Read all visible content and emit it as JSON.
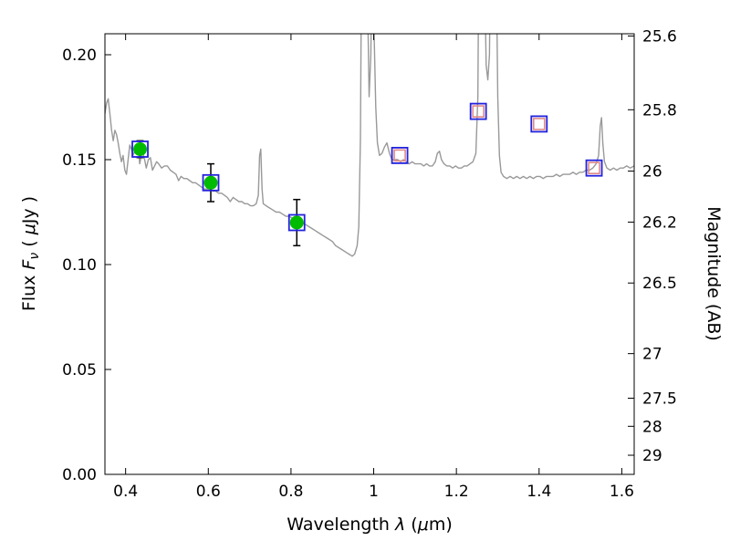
{
  "chart_data": {
    "type": "line+scatter",
    "title": "",
    "xlabel_parts": [
      "Wavelength ",
      "λ",
      " (",
      "μ",
      "m)"
    ],
    "ylabel_left_parts": [
      "Flux ",
      "F",
      "ν",
      " ( ",
      "μ",
      "Jy )"
    ],
    "ylabel_right": "Magnitude (AB)",
    "xlim": [
      0.35,
      1.63
    ],
    "ylim": [
      0.0,
      0.21
    ],
    "grid": false,
    "legend": "none",
    "ab_zeropoint_ujy": 23.9,
    "x_ticks": [
      0.4,
      0.6,
      0.8,
      1.0,
      1.2,
      1.4,
      1.6
    ],
    "x_tick_labels": [
      "0.4",
      "0.6",
      "0.8",
      "1",
      "1.2",
      "1.4",
      "1.6"
    ],
    "y_ticks_left": [
      0.0,
      0.05,
      0.1,
      0.15,
      0.2
    ],
    "y_tick_labels_left": [
      "0.00",
      "0.05",
      "0.10",
      "0.15",
      "0.20"
    ],
    "y_ticks_right_mag": [
      25.6,
      25.8,
      26.0,
      26.2,
      26.5,
      27.0,
      27.5,
      28.0,
      29.0
    ],
    "y_tick_labels_right": [
      "25.6",
      "25.8",
      "26",
      "26.2",
      "26.5",
      "27",
      "27.5",
      "28",
      "29"
    ],
    "series": [
      {
        "name": "model-spectrum",
        "kind": "line",
        "color": "#999999",
        "width": 1.4,
        "points": [
          [
            0.35,
            0.172
          ],
          [
            0.354,
            0.177
          ],
          [
            0.358,
            0.179
          ],
          [
            0.362,
            0.172
          ],
          [
            0.366,
            0.164
          ],
          [
            0.37,
            0.159
          ],
          [
            0.374,
            0.164
          ],
          [
            0.378,
            0.162
          ],
          [
            0.382,
            0.158
          ],
          [
            0.386,
            0.153
          ],
          [
            0.39,
            0.149
          ],
          [
            0.394,
            0.152
          ],
          [
            0.398,
            0.145
          ],
          [
            0.402,
            0.143
          ],
          [
            0.406,
            0.15
          ],
          [
            0.41,
            0.157
          ],
          [
            0.414,
            0.155
          ],
          [
            0.418,
            0.152
          ],
          [
            0.422,
            0.154
          ],
          [
            0.426,
            0.156
          ],
          [
            0.43,
            0.157
          ],
          [
            0.434,
            0.148
          ],
          [
            0.438,
            0.152
          ],
          [
            0.442,
            0.153
          ],
          [
            0.446,
            0.15
          ],
          [
            0.45,
            0.146
          ],
          [
            0.455,
            0.15
          ],
          [
            0.46,
            0.151
          ],
          [
            0.465,
            0.145
          ],
          [
            0.47,
            0.147
          ],
          [
            0.475,
            0.149
          ],
          [
            0.48,
            0.148
          ],
          [
            0.487,
            0.146
          ],
          [
            0.494,
            0.147
          ],
          [
            0.501,
            0.147
          ],
          [
            0.508,
            0.145
          ],
          [
            0.515,
            0.144
          ],
          [
            0.522,
            0.143
          ],
          [
            0.528,
            0.14
          ],
          [
            0.534,
            0.142
          ],
          [
            0.541,
            0.141
          ],
          [
            0.548,
            0.141
          ],
          [
            0.555,
            0.14
          ],
          [
            0.562,
            0.139
          ],
          [
            0.569,
            0.139
          ],
          [
            0.576,
            0.138
          ],
          [
            0.583,
            0.137
          ],
          [
            0.59,
            0.136
          ],
          [
            0.597,
            0.136
          ],
          [
            0.604,
            0.136
          ],
          [
            0.611,
            0.135
          ],
          [
            0.618,
            0.135
          ],
          [
            0.625,
            0.134
          ],
          [
            0.632,
            0.134
          ],
          [
            0.639,
            0.133
          ],
          [
            0.646,
            0.132
          ],
          [
            0.653,
            0.13
          ],
          [
            0.66,
            0.132
          ],
          [
            0.667,
            0.131
          ],
          [
            0.674,
            0.13
          ],
          [
            0.681,
            0.13
          ],
          [
            0.688,
            0.129
          ],
          [
            0.695,
            0.129
          ],
          [
            0.702,
            0.128
          ],
          [
            0.709,
            0.128
          ],
          [
            0.716,
            0.129
          ],
          [
            0.721,
            0.133
          ],
          [
            0.724,
            0.152
          ],
          [
            0.727,
            0.155
          ],
          [
            0.73,
            0.136
          ],
          [
            0.733,
            0.129
          ],
          [
            0.74,
            0.128
          ],
          [
            0.748,
            0.127
          ],
          [
            0.756,
            0.126
          ],
          [
            0.764,
            0.125
          ],
          [
            0.772,
            0.125
          ],
          [
            0.78,
            0.124
          ],
          [
            0.788,
            0.123
          ],
          [
            0.796,
            0.123
          ],
          [
            0.804,
            0.122
          ],
          [
            0.812,
            0.121
          ],
          [
            0.82,
            0.121
          ],
          [
            0.828,
            0.12
          ],
          [
            0.836,
            0.119
          ],
          [
            0.844,
            0.118
          ],
          [
            0.852,
            0.117
          ],
          [
            0.86,
            0.116
          ],
          [
            0.868,
            0.115
          ],
          [
            0.876,
            0.114
          ],
          [
            0.884,
            0.113
          ],
          [
            0.892,
            0.112
          ],
          [
            0.9,
            0.111
          ],
          [
            0.908,
            0.109
          ],
          [
            0.916,
            0.108
          ],
          [
            0.924,
            0.107
          ],
          [
            0.932,
            0.106
          ],
          [
            0.94,
            0.105
          ],
          [
            0.948,
            0.104
          ],
          [
            0.954,
            0.105
          ],
          [
            0.96,
            0.109
          ],
          [
            0.964,
            0.118
          ],
          [
            0.968,
            0.16
          ],
          [
            0.971,
            0.26
          ],
          [
            0.976,
            0.33
          ],
          [
            0.981,
            0.3
          ],
          [
            0.985,
            0.23
          ],
          [
            0.989,
            0.18
          ],
          [
            0.993,
            0.2
          ],
          [
            0.997,
            0.26
          ],
          [
            1.001,
            0.21
          ],
          [
            1.005,
            0.175
          ],
          [
            1.009,
            0.158
          ],
          [
            1.014,
            0.152
          ],
          [
            1.02,
            0.153
          ],
          [
            1.026,
            0.156
          ],
          [
            1.032,
            0.158
          ],
          [
            1.038,
            0.153
          ],
          [
            1.044,
            0.15
          ],
          [
            1.051,
            0.15
          ],
          [
            1.058,
            0.15
          ],
          [
            1.065,
            0.149
          ],
          [
            1.072,
            0.15
          ],
          [
            1.079,
            0.149
          ],
          [
            1.086,
            0.148
          ],
          [
            1.093,
            0.149
          ],
          [
            1.1,
            0.148
          ],
          [
            1.107,
            0.148
          ],
          [
            1.114,
            0.148
          ],
          [
            1.121,
            0.147
          ],
          [
            1.128,
            0.148
          ],
          [
            1.135,
            0.147
          ],
          [
            1.142,
            0.147
          ],
          [
            1.149,
            0.149
          ],
          [
            1.154,
            0.153
          ],
          [
            1.159,
            0.154
          ],
          [
            1.164,
            0.15
          ],
          [
            1.17,
            0.148
          ],
          [
            1.177,
            0.147
          ],
          [
            1.184,
            0.147
          ],
          [
            1.191,
            0.146
          ],
          [
            1.198,
            0.147
          ],
          [
            1.205,
            0.146
          ],
          [
            1.212,
            0.146
          ],
          [
            1.219,
            0.147
          ],
          [
            1.226,
            0.147
          ],
          [
            1.233,
            0.148
          ],
          [
            1.24,
            0.149
          ],
          [
            1.247,
            0.153
          ],
          [
            1.252,
            0.18
          ],
          [
            1.256,
            0.3
          ],
          [
            1.26,
            0.36
          ],
          [
            1.264,
            0.33
          ],
          [
            1.268,
            0.24
          ],
          [
            1.272,
            0.195
          ],
          [
            1.276,
            0.188
          ],
          [
            1.28,
            0.2
          ],
          [
            1.284,
            0.28
          ],
          [
            1.288,
            0.36
          ],
          [
            1.292,
            0.34
          ],
          [
            1.296,
            0.25
          ],
          [
            1.3,
            0.18
          ],
          [
            1.304,
            0.152
          ],
          [
            1.308,
            0.144
          ],
          [
            1.314,
            0.142
          ],
          [
            1.322,
            0.141
          ],
          [
            1.33,
            0.142
          ],
          [
            1.338,
            0.141
          ],
          [
            1.346,
            0.142
          ],
          [
            1.354,
            0.141
          ],
          [
            1.362,
            0.142
          ],
          [
            1.37,
            0.141
          ],
          [
            1.378,
            0.142
          ],
          [
            1.386,
            0.141
          ],
          [
            1.394,
            0.142
          ],
          [
            1.402,
            0.142
          ],
          [
            1.41,
            0.141
          ],
          [
            1.418,
            0.142
          ],
          [
            1.426,
            0.142
          ],
          [
            1.434,
            0.142
          ],
          [
            1.442,
            0.143
          ],
          [
            1.45,
            0.142
          ],
          [
            1.458,
            0.143
          ],
          [
            1.466,
            0.143
          ],
          [
            1.474,
            0.143
          ],
          [
            1.482,
            0.144
          ],
          [
            1.49,
            0.143
          ],
          [
            1.498,
            0.144
          ],
          [
            1.506,
            0.144
          ],
          [
            1.514,
            0.145
          ],
          [
            1.522,
            0.145
          ],
          [
            1.53,
            0.146
          ],
          [
            1.538,
            0.148
          ],
          [
            1.544,
            0.152
          ],
          [
            1.548,
            0.166
          ],
          [
            1.551,
            0.17
          ],
          [
            1.554,
            0.158
          ],
          [
            1.558,
            0.149
          ],
          [
            1.564,
            0.146
          ],
          [
            1.572,
            0.145
          ],
          [
            1.58,
            0.146
          ],
          [
            1.588,
            0.145
          ],
          [
            1.596,
            0.146
          ],
          [
            1.604,
            0.146
          ],
          [
            1.612,
            0.147
          ],
          [
            1.62,
            0.146
          ],
          [
            1.63,
            0.147
          ]
        ]
      },
      {
        "name": "observed-photometry",
        "kind": "scatter",
        "marker": "circle",
        "color": "#00bb00",
        "size": 15,
        "error_color": "#000000",
        "points": [
          [
            0.435,
            0.155
          ],
          [
            0.606,
            0.139
          ],
          [
            0.814,
            0.12
          ]
        ],
        "yerr": [
          0.004,
          0.009,
          0.011
        ]
      },
      {
        "name": "synthetic-photometry-blue",
        "kind": "scatter",
        "marker": "square-open",
        "color": "#2222dd",
        "size": 17,
        "stroke_width": 1.8,
        "points": [
          [
            0.435,
            0.155
          ],
          [
            0.606,
            0.139
          ],
          [
            0.814,
            0.12
          ],
          [
            1.063,
            0.152
          ],
          [
            1.253,
            0.173
          ],
          [
            1.4,
            0.167
          ],
          [
            1.533,
            0.146
          ]
        ]
      },
      {
        "name": "synthetic-photometry-red",
        "kind": "scatter",
        "marker": "square-open",
        "color": "#e08a8a",
        "size": 12,
        "stroke_width": 1.6,
        "points": [
          [
            1.063,
            0.152
          ],
          [
            1.253,
            0.173
          ],
          [
            1.4,
            0.167
          ],
          [
            1.533,
            0.146
          ]
        ]
      }
    ]
  }
}
